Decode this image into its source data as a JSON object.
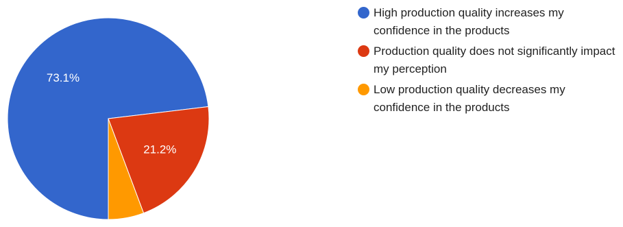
{
  "chart_data": {
    "type": "pie",
    "slices": [
      {
        "label": "High production quality increases my confidence in the products",
        "value": 73.1,
        "value_label": "73.1%",
        "color": "#3366cc"
      },
      {
        "label": "Production quality does not significantly impact my perception",
        "value": 21.2,
        "value_label": "21.2%",
        "color": "#dc3912"
      },
      {
        "label": "Low production quality decreases my confidence in the products",
        "value": 5.7,
        "value_label": "",
        "color": "#ff9900"
      }
    ],
    "legend_position": "right"
  }
}
